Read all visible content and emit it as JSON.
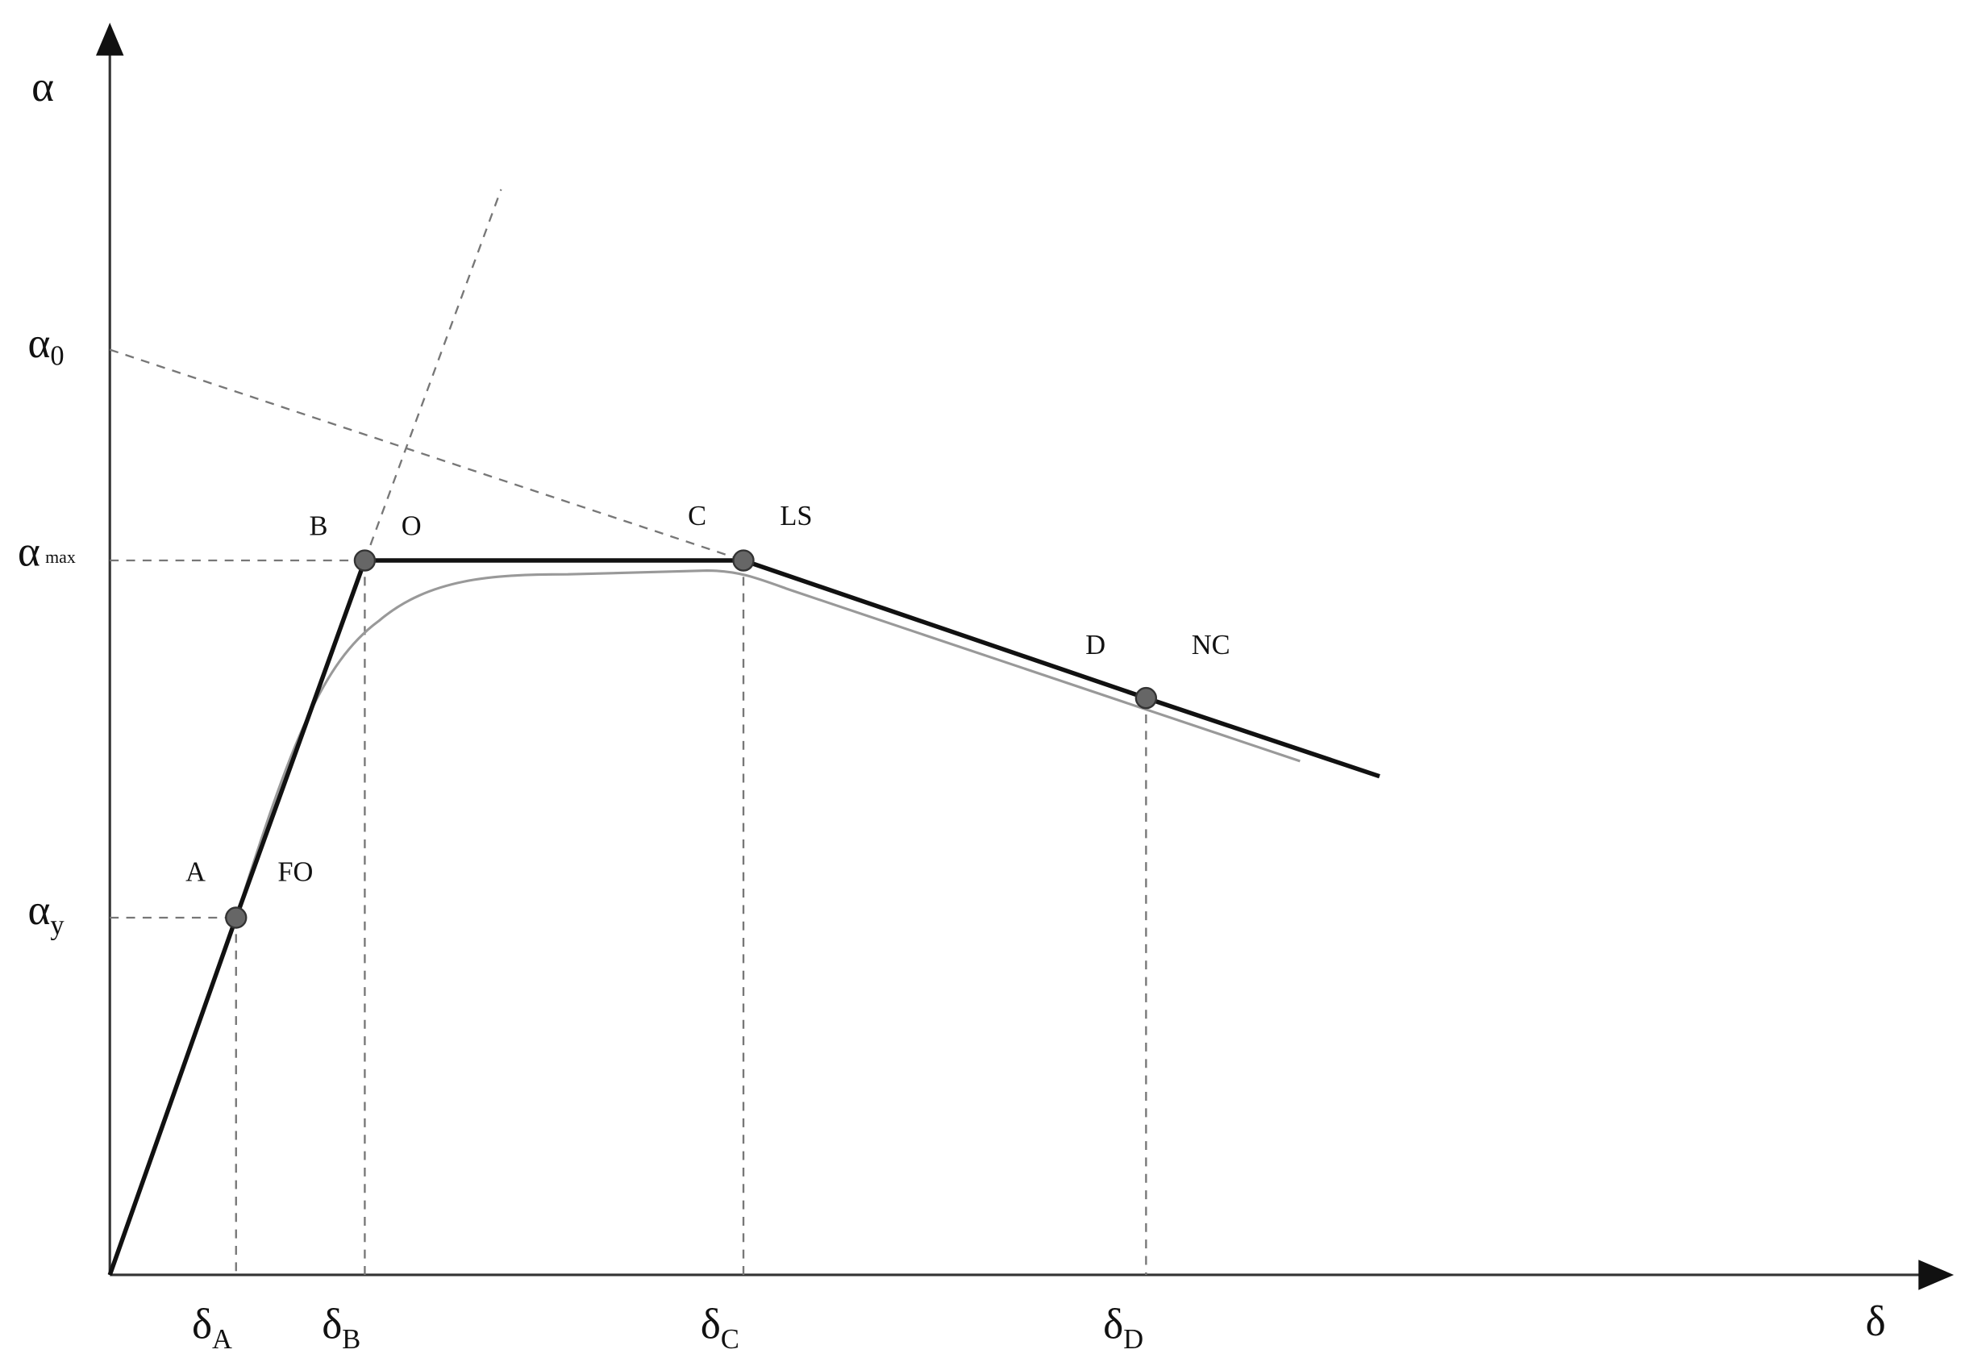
{
  "axes": {
    "y_label": "α",
    "x_label": "δ"
  },
  "y_levels": [
    {
      "symbol": "α",
      "subscript": "0"
    },
    {
      "symbol": "α",
      "subscript": "max"
    },
    {
      "symbol": "α",
      "subscript": "y"
    }
  ],
  "x_levels": [
    {
      "symbol": "δ",
      "subscript": "A"
    },
    {
      "symbol": "δ",
      "subscript": "B"
    },
    {
      "symbol": "δ",
      "subscript": "C"
    },
    {
      "symbol": "δ",
      "subscript": "D"
    }
  ],
  "points": [
    {
      "name": "A",
      "level": "FO"
    },
    {
      "name": "B",
      "level": "O"
    },
    {
      "name": "C",
      "level": "LS"
    },
    {
      "name": "D",
      "level": "NC"
    }
  ]
}
